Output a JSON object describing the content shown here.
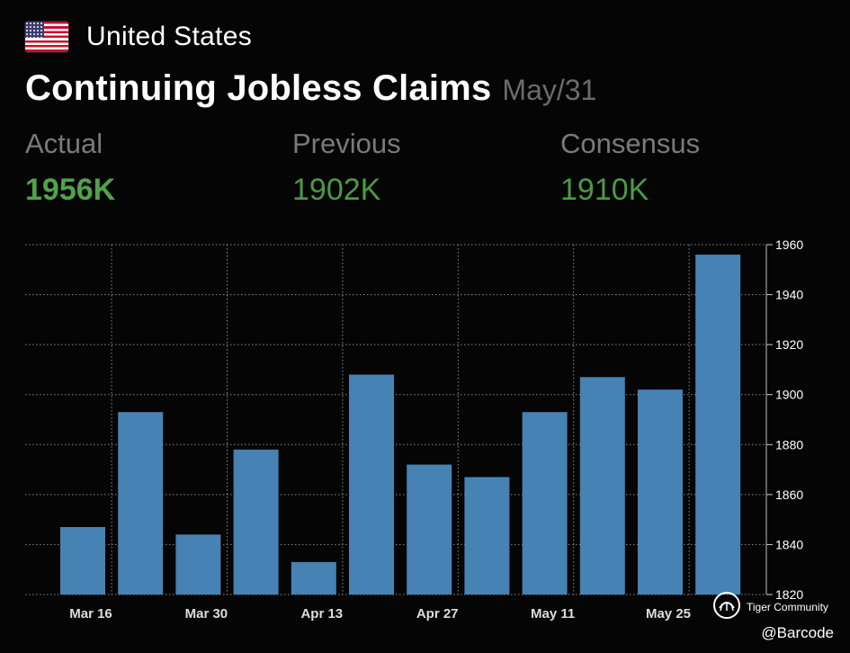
{
  "header": {
    "flag_icon": "us-flag-icon",
    "country": "United States",
    "title": "Continuing Jobless Claims",
    "period": "May/31"
  },
  "stats": {
    "actual_label": "Actual",
    "actual_value": "1956K",
    "previous_label": "Previous",
    "previous_value": "1902K",
    "consensus_label": "Consensus",
    "consensus_value": "1910K"
  },
  "colors": {
    "bar": "#4682b4",
    "value_green": "#4c9a45",
    "label_gray": "#7a7a7a",
    "grid": "#8a8a8a"
  },
  "chart_data": {
    "type": "bar",
    "title": "Continuing Jobless Claims",
    "xlabel": "",
    "ylabel": "",
    "values": [
      1847,
      1893,
      1844,
      1878,
      1833,
      1908,
      1872,
      1867,
      1893,
      1907,
      1902,
      1956
    ],
    "x_tick_labels": [
      "Mar 16",
      "Mar 30",
      "Apr 13",
      "Apr 27",
      "May 11",
      "May 25"
    ],
    "ylim": [
      1820,
      1960
    ],
    "y_ticks": [
      1820,
      1840,
      1860,
      1880,
      1900,
      1920,
      1940,
      1960
    ],
    "y_axis_position": "right",
    "grid": true,
    "grid_style": "dotted"
  },
  "watermark": {
    "community": "Tiger Community",
    "handle": "@Barcode"
  }
}
